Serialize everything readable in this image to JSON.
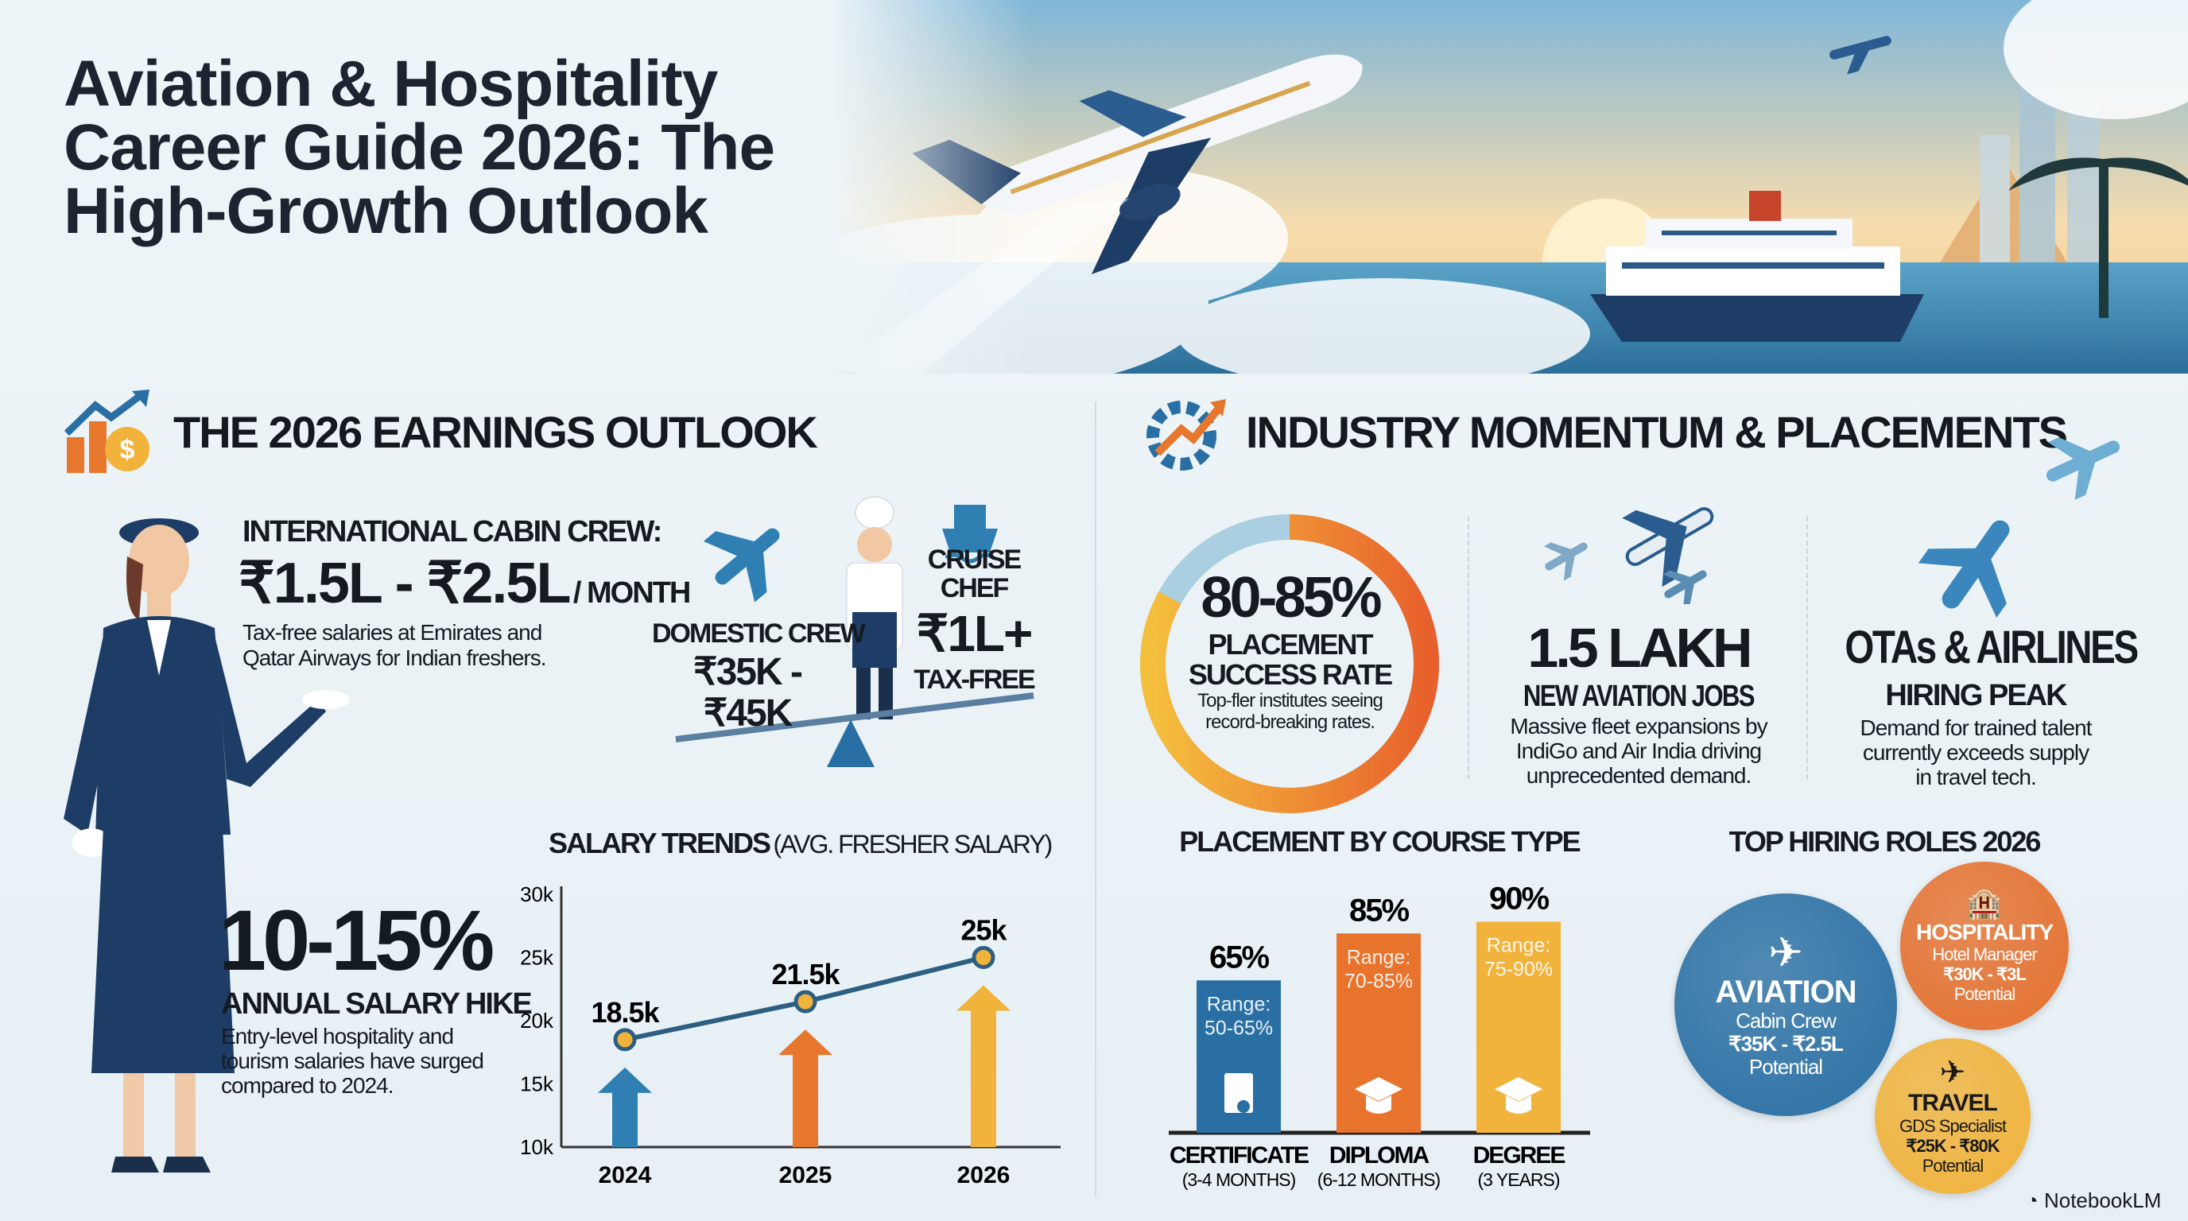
{
  "title": {
    "line1": "Aviation & Hospitality",
    "line2": "Career Guide 2026: The",
    "line3": "High-Growth Outlook"
  },
  "colors": {
    "navy": "#1f4e7a",
    "blue": "#2f7fb3",
    "orange": "#e8772e",
    "yellow": "#f2b33c",
    "background": "#eaf2f6"
  },
  "earnings": {
    "heading": "THE 2026 EARNINGS OUTLOOK",
    "icon": "growth-chart-money-icon",
    "intl_label": "INTERNATIONAL CABIN CREW:",
    "intl_value": "₹1.5L - ₹2.5L",
    "intl_unit": "/ MONTH",
    "intl_note_1": "Tax-free salaries at Emirates and",
    "intl_note_2": "Qatar Airways for Indian freshers.",
    "domestic_label": "DOMESTIC CREW",
    "domestic_value_1": "₹35K -",
    "domestic_value_2": "₹45K",
    "cruise_label_1": "CRUISE",
    "cruise_label_2": "CHEF",
    "cruise_value": "₹1L+",
    "cruise_note": "TAX-FREE",
    "hike_value": "10-15%",
    "hike_label": "ANNUAL SALARY HIKE",
    "hike_note_1": "Entry-level hospitality and",
    "hike_note_2": "tourism salaries have surged",
    "hike_note_3": "compared to 2024."
  },
  "momentum": {
    "heading": "INDUSTRY MOMENTUM & PLACEMENTS",
    "icon": "gear-growth-icon",
    "placement_rate": "80-85%",
    "placement_label_1": "PLACEMENT",
    "placement_label_2": "SUCCESS RATE",
    "placement_note_1": "Top-fler institutes seeing",
    "placement_note_2": "record-breaking rates.",
    "jobs_value": "1.5 LAKH",
    "jobs_label": "NEW AVIATION JOBS",
    "jobs_note_1": "Massive fleet expansions by",
    "jobs_note_2": "IndiGo and Air India driving",
    "jobs_note_3": "unprecedented demand.",
    "otas_value": "OTAs & AIRLINES",
    "otas_label": "HIRING PEAK",
    "otas_note_1": "Demand for trained talent",
    "otas_note_2": "currently exceeds supply",
    "otas_note_3": "in travel tech."
  },
  "roles": {
    "title": "TOP HIRING ROLES 2026",
    "items": [
      {
        "name": "AVIATION",
        "role": "Cabin Crew",
        "pay": "₹35K - ₹2.5L",
        "note": "Potential",
        "icon": "airplane-icon",
        "color": "#2a6fa3"
      },
      {
        "name": "HOSPITALITY",
        "role": "Hotel Manager",
        "pay": "₹30K - ₹3L",
        "note": "Potential",
        "icon": "hotel-building-icon",
        "color": "#e4702e"
      },
      {
        "name": "TRAVEL",
        "role": "GDS Specialist",
        "pay": "₹25K - ₹80K",
        "note": "Potential",
        "icon": "airplane-icon",
        "color": "#f0b23a"
      }
    ]
  },
  "chart_data": [
    {
      "type": "line",
      "title": "SALARY TRENDS",
      "subtitle": "(AVG. FRESHER SALARY)",
      "categories": [
        "2024",
        "2025",
        "2026"
      ],
      "values": [
        18.5,
        21.5,
        25
      ],
      "data_labels": [
        "18.5k",
        "21.5k",
        "25k"
      ],
      "yticks": [
        "30k",
        "25k",
        "20k",
        "15k",
        "10k"
      ],
      "ylim": [
        10,
        30
      ],
      "grid": false
    },
    {
      "type": "bar",
      "title": "PLACEMENT BY COURSE TYPE",
      "categories": [
        "CERTIFICATE",
        "DIPLOMA",
        "DEGREE"
      ],
      "sublabels": [
        "(3-4 MONTHS)",
        "(6-12 MONTHS)",
        "(3 YEARS)"
      ],
      "values": [
        65,
        85,
        90
      ],
      "data_labels": [
        "65%",
        "85%",
        "90%"
      ],
      "ranges": [
        "Range:\n50-65%",
        "Range:\n70-85%",
        "Range:\n75-90%"
      ],
      "range_labels": [
        "50-65%",
        "70-85%",
        "75-90%"
      ],
      "range_prefix": "Range:",
      "colors": [
        "#2a6fa3",
        "#e8732c",
        "#f2b33c"
      ],
      "icons": [
        "certificate-icon",
        "graduation-cap-icon",
        "graduation-cap-icon"
      ],
      "ylim": [
        0,
        100
      ]
    }
  ],
  "footer": {
    "brand": "NotebookLM"
  }
}
